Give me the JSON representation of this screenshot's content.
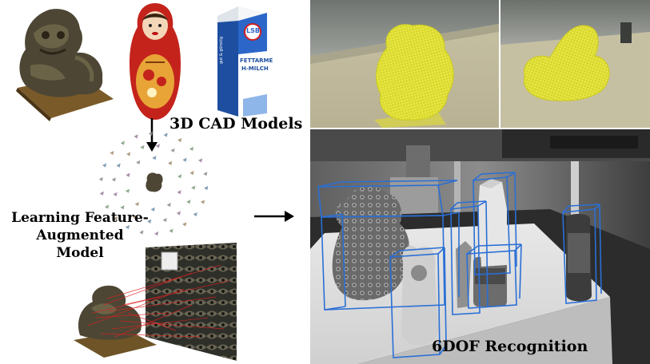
{
  "labels": {
    "cad_models": "3D CAD Models",
    "learning": [
      "Learning Feature-",
      "Augmented",
      "Model"
    ],
    "recognition": "6DOF Recognition"
  },
  "carton_text": {
    "brand": "LSB",
    "name_line1": "FETTARME",
    "name_line2": "H-MILCH",
    "small": "gut & günstig"
  },
  "colors": {
    "mesh_yellow": "#e8e800",
    "bbox_blue": "#2a6fd6",
    "arrow": "#000000",
    "match_red": "#e02020"
  }
}
